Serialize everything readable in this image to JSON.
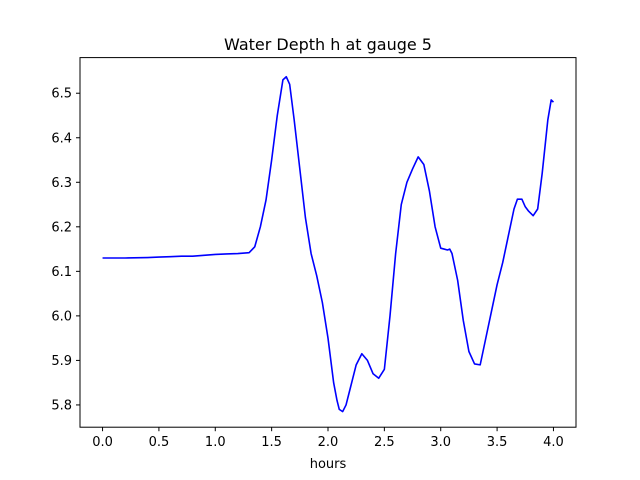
{
  "chart_data": {
    "type": "line",
    "title": "Water Depth h at gauge 5",
    "xlabel": "hours",
    "ylabel": "",
    "xlim": [
      -0.2,
      4.2
    ],
    "ylim": [
      5.75,
      6.58
    ],
    "xticks": [
      0.0,
      0.5,
      1.0,
      1.5,
      2.0,
      2.5,
      3.0,
      3.5,
      4.0
    ],
    "xtick_labels": [
      "0.0",
      "0.5",
      "1.0",
      "1.5",
      "2.0",
      "2.5",
      "3.0",
      "3.5",
      "4.0"
    ],
    "yticks": [
      5.8,
      5.9,
      6.0,
      6.1,
      6.2,
      6.3,
      6.4,
      6.5
    ],
    "ytick_labels": [
      "5.8",
      "5.9",
      "6.0",
      "6.1",
      "6.2",
      "6.3",
      "6.4",
      "6.5"
    ],
    "grid": false,
    "series": [
      {
        "color": "#0000ff",
        "x": [
          0.0,
          0.2,
          0.4,
          0.5,
          0.6,
          0.7,
          0.8,
          0.9,
          1.0,
          1.1,
          1.2,
          1.3,
          1.35,
          1.4,
          1.45,
          1.5,
          1.55,
          1.6,
          1.63,
          1.66,
          1.7,
          1.75,
          1.8,
          1.85,
          1.9,
          1.95,
          2.0,
          2.05,
          2.08,
          2.1,
          2.13,
          2.16,
          2.2,
          2.25,
          2.3,
          2.35,
          2.4,
          2.45,
          2.5,
          2.55,
          2.6,
          2.65,
          2.7,
          2.75,
          2.8,
          2.85,
          2.9,
          2.95,
          3.0,
          3.03,
          3.06,
          3.08,
          3.1,
          3.15,
          3.2,
          3.25,
          3.3,
          3.35,
          3.4,
          3.45,
          3.5,
          3.55,
          3.6,
          3.65,
          3.68,
          3.72,
          3.75,
          3.78,
          3.82,
          3.86,
          3.9,
          3.95,
          3.98,
          4.0
        ],
        "y": [
          6.13,
          6.13,
          6.131,
          6.132,
          6.133,
          6.134,
          6.134,
          6.136,
          6.138,
          6.139,
          6.14,
          6.142,
          6.155,
          6.2,
          6.26,
          6.35,
          6.45,
          6.53,
          6.537,
          6.52,
          6.44,
          6.33,
          6.22,
          6.14,
          6.09,
          6.03,
          5.95,
          5.85,
          5.81,
          5.79,
          5.785,
          5.8,
          5.84,
          5.89,
          5.915,
          5.9,
          5.87,
          5.86,
          5.88,
          6.0,
          6.14,
          6.25,
          6.3,
          6.33,
          6.357,
          6.34,
          6.28,
          6.2,
          6.152,
          6.15,
          6.148,
          6.15,
          6.14,
          6.08,
          5.99,
          5.92,
          5.892,
          5.89,
          5.95,
          6.01,
          6.07,
          6.12,
          6.18,
          6.24,
          6.262,
          6.262,
          6.245,
          6.235,
          6.225,
          6.24,
          6.32,
          6.44,
          6.485,
          6.48
        ]
      }
    ]
  }
}
